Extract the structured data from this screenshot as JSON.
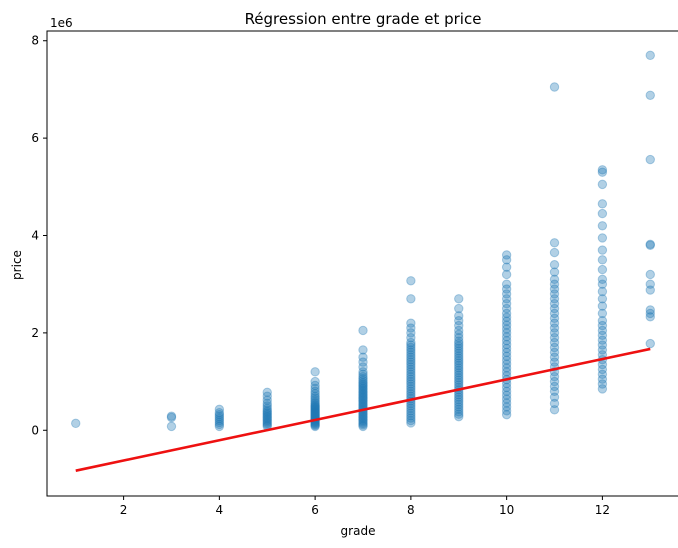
{
  "chart_data": {
    "type": "scatter",
    "title": "Régression entre grade et price",
    "xlabel": "grade",
    "ylabel": "price",
    "y_offset_label": "1e6",
    "xlim": [
      0.4,
      13.6
    ],
    "ylim": [
      -1.35,
      8.2
    ],
    "xticks": [
      2,
      4,
      6,
      8,
      10,
      12
    ],
    "yticks": [
      0,
      2,
      4,
      6,
      8
    ],
    "y_scale_factor": 1000000,
    "grid": false,
    "legend": "none",
    "point_color": "#1f77b4",
    "point_alpha": 0.35,
    "series": [
      {
        "kind": "scatter",
        "points_by_grade": [
          {
            "grade": 1,
            "y": [
              0.142
            ]
          },
          {
            "grade": 3,
            "y": [
              0.08,
              0.262,
              0.29
            ]
          },
          {
            "grade": 4,
            "y": [
              0.08,
              0.12,
              0.16,
              0.2,
              0.24,
              0.28,
              0.32,
              0.36,
              0.43
            ]
          },
          {
            "grade": 5,
            "y": [
              0.08,
              0.11,
              0.14,
              0.17,
              0.2,
              0.23,
              0.26,
              0.29,
              0.32,
              0.35,
              0.38,
              0.41,
              0.45,
              0.5,
              0.55,
              0.62,
              0.7,
              0.78
            ]
          },
          {
            "grade": 6,
            "y": [
              0.08,
              0.1,
              0.12,
              0.14,
              0.16,
              0.18,
              0.2,
              0.22,
              0.24,
              0.26,
              0.28,
              0.3,
              0.32,
              0.34,
              0.36,
              0.38,
              0.4,
              0.42,
              0.44,
              0.46,
              0.48,
              0.5,
              0.52,
              0.55,
              0.58,
              0.62,
              0.66,
              0.7,
              0.75,
              0.8,
              0.86,
              0.92,
              1.0,
              1.2
            ]
          },
          {
            "grade": 7,
            "y": [
              0.08,
              0.11,
              0.14,
              0.17,
              0.2,
              0.23,
              0.26,
              0.29,
              0.32,
              0.35,
              0.38,
              0.41,
              0.44,
              0.47,
              0.5,
              0.53,
              0.56,
              0.59,
              0.62,
              0.65,
              0.68,
              0.71,
              0.74,
              0.77,
              0.8,
              0.83,
              0.86,
              0.89,
              0.92,
              0.95,
              0.98,
              1.02,
              1.06,
              1.1,
              1.15,
              1.2,
              1.3,
              1.4,
              1.5,
              1.65,
              2.05
            ]
          },
          {
            "grade": 8,
            "y": [
              0.15,
              0.2,
              0.25,
              0.3,
              0.35,
              0.4,
              0.45,
              0.5,
              0.55,
              0.6,
              0.65,
              0.7,
              0.75,
              0.8,
              0.85,
              0.9,
              0.95,
              1.0,
              1.05,
              1.1,
              1.15,
              1.2,
              1.25,
              1.3,
              1.35,
              1.4,
              1.45,
              1.5,
              1.55,
              1.6,
              1.65,
              1.7,
              1.75,
              1.8,
              1.9,
              2.0,
              2.1,
              2.2,
              2.7,
              3.07
            ]
          },
          {
            "grade": 9,
            "y": [
              0.28,
              0.33,
              0.38,
              0.43,
              0.48,
              0.53,
              0.58,
              0.63,
              0.68,
              0.73,
              0.78,
              0.83,
              0.88,
              0.93,
              0.98,
              1.03,
              1.08,
              1.13,
              1.18,
              1.23,
              1.28,
              1.33,
              1.38,
              1.43,
              1.48,
              1.53,
              1.58,
              1.63,
              1.68,
              1.73,
              1.78,
              1.83,
              1.9,
              1.97,
              2.05,
              2.15,
              2.25,
              2.35,
              2.5,
              2.7
            ]
          },
          {
            "grade": 10,
            "y": [
              0.32,
              0.4,
              0.48,
              0.56,
              0.64,
              0.72,
              0.8,
              0.88,
              0.96,
              1.04,
              1.12,
              1.2,
              1.28,
              1.36,
              1.44,
              1.52,
              1.6,
              1.68,
              1.76,
              1.84,
              1.92,
              2.0,
              2.08,
              2.16,
              2.24,
              2.32,
              2.4,
              2.5,
              2.6,
              2.7,
              2.8,
              2.9,
              3.0,
              3.2,
              3.35,
              3.5,
              3.6
            ]
          },
          {
            "grade": 11,
            "y": [
              0.42,
              0.55,
              0.68,
              0.8,
              0.9,
              1.0,
              1.1,
              1.2,
              1.3,
              1.4,
              1.5,
              1.6,
              1.7,
              1.8,
              1.9,
              2.0,
              2.1,
              2.2,
              2.3,
              2.4,
              2.5,
              2.6,
              2.7,
              2.8,
              2.9,
              3.0,
              3.1,
              3.25,
              3.4,
              3.65,
              3.85,
              7.05
            ]
          },
          {
            "grade": 12,
            "y": [
              0.85,
              0.95,
              1.05,
              1.15,
              1.25,
              1.35,
              1.45,
              1.55,
              1.65,
              1.75,
              1.85,
              1.95,
              2.05,
              2.15,
              2.25,
              2.4,
              2.55,
              2.7,
              2.85,
              3.0,
              3.1,
              3.3,
              3.5,
              3.7,
              3.95,
              4.2,
              4.45,
              4.65,
              5.05,
              5.3,
              5.35
            ]
          },
          {
            "grade": 13,
            "y": [
              1.78,
              2.33,
              2.4,
              2.47,
              2.88,
              3.0,
              3.2,
              3.8,
              3.82,
              5.56,
              6.88,
              7.7
            ]
          }
        ]
      },
      {
        "kind": "regression_line",
        "color": "#ee1111",
        "x": [
          1,
          13
        ],
        "y": [
          -0.83,
          1.67
        ]
      }
    ]
  }
}
